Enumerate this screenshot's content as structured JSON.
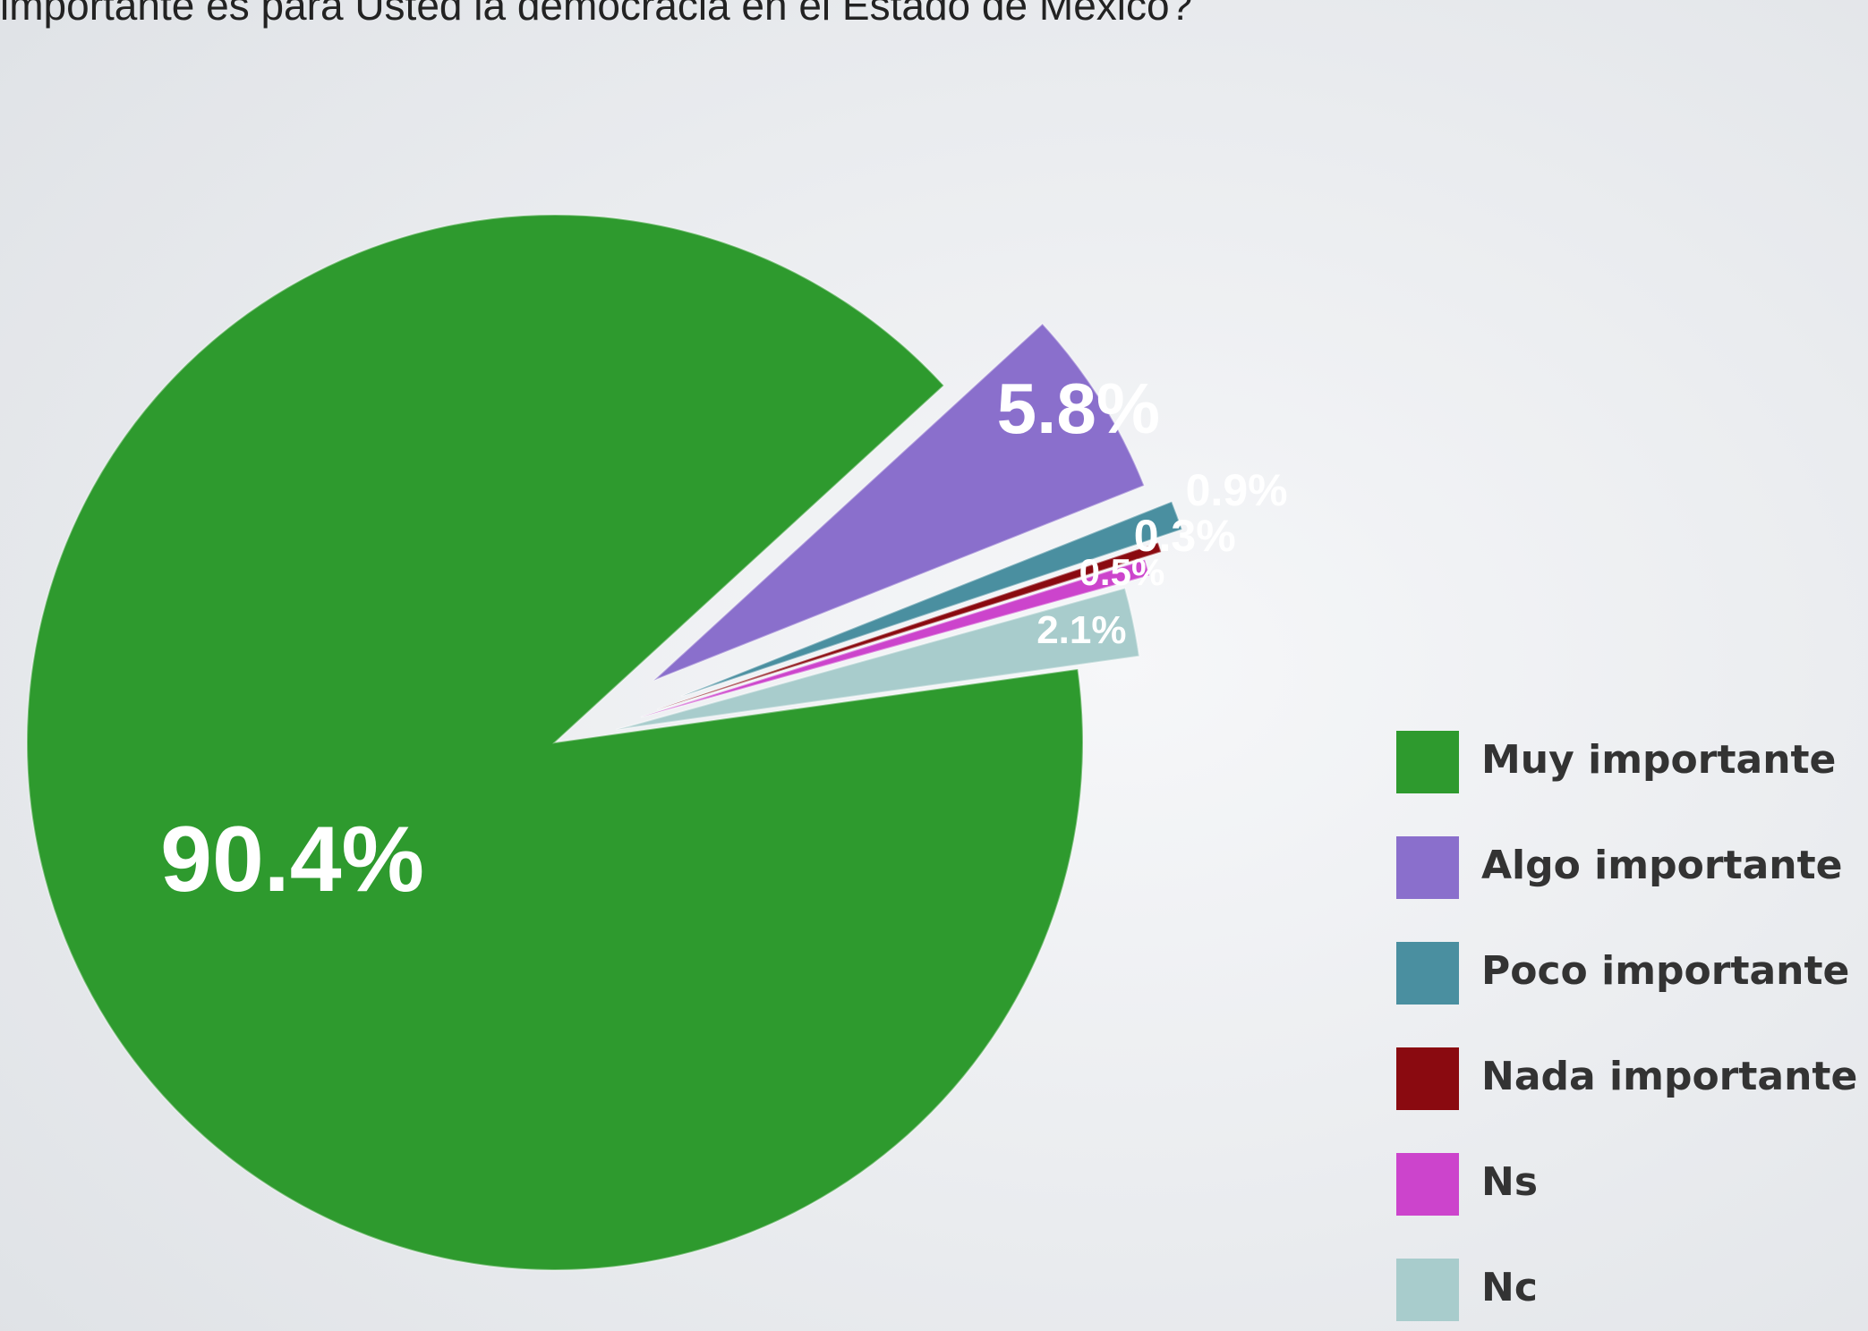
{
  "chart_data": {
    "type": "pie",
    "title": "importante es para Usted la democracia en el Estado de México?",
    "categories": [
      "Muy importante",
      "Algo importante",
      "Poco importante",
      "Nada importante",
      "Ns",
      "Nc"
    ],
    "values": [
      90.4,
      5.8,
      0.9,
      0.3,
      0.5,
      2.1
    ],
    "value_labels": [
      "90.4%",
      "5.8%",
      "0.9%",
      "0.3%",
      "0.5%",
      "2.1%"
    ],
    "colors": [
      "#2e9a2e",
      "#8a6fcc",
      "#4a8fa0",
      "#8a0a10",
      "#cc44cc",
      "#a8cccc"
    ],
    "legend": "right"
  }
}
